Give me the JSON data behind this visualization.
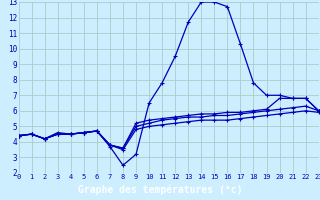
{
  "xlabel": "Graphe des températures (°c)",
  "bg_color": "#cceeff",
  "grid_color": "#aacccc",
  "line_color": "#0000bb",
  "xlabel_bg": "#3333aa",
  "xlabel_fg": "#ffffff",
  "xlim": [
    0,
    23
  ],
  "ylim": [
    2,
    13
  ],
  "xticks": [
    0,
    1,
    2,
    3,
    4,
    5,
    6,
    7,
    8,
    9,
    10,
    11,
    12,
    13,
    14,
    15,
    16,
    17,
    18,
    19,
    20,
    21,
    22,
    23
  ],
  "yticks": [
    2,
    3,
    4,
    5,
    6,
    7,
    8,
    9,
    10,
    11,
    12,
    13
  ],
  "series1_x": [
    0,
    1,
    2,
    3,
    4,
    5,
    6,
    7,
    8,
    9,
    10,
    11,
    12,
    13,
    14,
    15,
    16,
    17,
    18,
    19,
    20,
    21,
    22,
    23
  ],
  "series1_y": [
    4.4,
    4.5,
    4.2,
    4.6,
    4.5,
    4.6,
    4.7,
    3.7,
    2.5,
    3.2,
    6.5,
    7.8,
    9.5,
    11.7,
    13.0,
    13.0,
    12.7,
    10.3,
    7.8,
    7.0,
    7.0,
    6.8,
    6.8,
    6.0
  ],
  "series2_x": [
    0,
    1,
    2,
    3,
    4,
    5,
    6,
    7,
    8,
    9,
    10,
    11,
    12,
    13,
    14,
    15,
    16,
    17,
    18,
    19,
    20,
    21,
    22,
    23
  ],
  "series2_y": [
    4.4,
    4.5,
    4.2,
    4.5,
    4.5,
    4.6,
    4.7,
    3.8,
    3.6,
    5.0,
    5.2,
    5.4,
    5.5,
    5.6,
    5.6,
    5.7,
    5.7,
    5.8,
    5.9,
    6.0,
    6.1,
    6.2,
    6.3,
    6.0
  ],
  "series3_x": [
    0,
    1,
    2,
    3,
    4,
    5,
    6,
    7,
    8,
    9,
    10,
    11,
    12,
    13,
    14,
    15,
    16,
    17,
    18,
    19,
    20,
    21,
    22,
    23
  ],
  "series3_y": [
    4.4,
    4.5,
    4.2,
    4.5,
    4.5,
    4.6,
    4.7,
    3.8,
    3.6,
    5.2,
    5.4,
    5.5,
    5.6,
    5.7,
    5.8,
    5.8,
    5.9,
    5.9,
    6.0,
    6.1,
    6.8,
    6.8,
    6.8,
    6.0
  ],
  "series4_x": [
    0,
    1,
    2,
    3,
    4,
    5,
    6,
    7,
    8,
    9,
    10,
    11,
    12,
    13,
    14,
    15,
    16,
    17,
    18,
    19,
    20,
    21,
    22,
    23
  ],
  "series4_y": [
    4.4,
    4.5,
    4.2,
    4.5,
    4.5,
    4.6,
    4.7,
    3.8,
    3.5,
    4.8,
    5.0,
    5.1,
    5.2,
    5.3,
    5.4,
    5.4,
    5.4,
    5.5,
    5.6,
    5.7,
    5.8,
    5.9,
    6.0,
    5.9
  ]
}
